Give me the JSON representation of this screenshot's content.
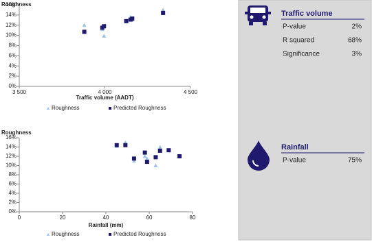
{
  "chart_data": [
    {
      "type": "scatter",
      "title": "Roughness",
      "x_label": "Traffic volume (AADT)",
      "xlim": [
        3500,
        4500
      ],
      "xticks": [
        {
          "value": 3500,
          "label": "3 500"
        },
        {
          "value": 4000,
          "label": "4 000"
        },
        {
          "value": 4500,
          "label": "4 500"
        }
      ],
      "ylim": [
        0,
        16
      ],
      "yticks": [
        {
          "value": 0,
          "label": "0%"
        },
        {
          "value": 2,
          "label": "2%"
        },
        {
          "value": 4,
          "label": "4%"
        },
        {
          "value": 6,
          "label": "6%"
        },
        {
          "value": 8,
          "label": "8%"
        },
        {
          "value": 10,
          "label": "10%"
        },
        {
          "value": 12,
          "label": "12%"
        },
        {
          "value": 14,
          "label": "14%"
        },
        {
          "value": 16,
          "label": "16%"
        }
      ],
      "grid": false,
      "series": [
        {
          "name": "Roughness",
          "marker": "triangle",
          "color": "#9dc3e6",
          "x": [
            3880,
            3985,
            3995,
            4125,
            4150,
            4160,
            4340
          ],
          "values": [
            12.0,
            11.2,
            9.9,
            12.7,
            13.6,
            13.1,
            15.0
          ]
        },
        {
          "name": "Predicted Roughness",
          "marker": "square",
          "color": "#1f1a6e",
          "x": [
            3880,
            3985,
            3995,
            4125,
            4150,
            4160,
            4340
          ],
          "values": [
            10.7,
            11.5,
            11.8,
            12.8,
            13.1,
            13.3,
            14.4
          ]
        }
      ]
    },
    {
      "type": "scatter",
      "title": "Roughness",
      "x_label": "Rainfall (mm)",
      "xlim": [
        0,
        80
      ],
      "xticks": [
        0,
        20,
        40,
        60,
        80
      ],
      "ylim": [
        0,
        16
      ],
      "yticks": [
        {
          "value": 0,
          "label": "0%"
        },
        {
          "value": 2,
          "label": "2%"
        },
        {
          "value": 4,
          "label": "4%"
        },
        {
          "value": 6,
          "label": "6%"
        },
        {
          "value": 8,
          "label": "8%"
        },
        {
          "value": 10,
          "label": "10%"
        },
        {
          "value": 12,
          "label": "12%"
        },
        {
          "value": 14,
          "label": "14%"
        },
        {
          "value": 16,
          "label": "16%"
        }
      ],
      "grid": false,
      "series": [
        {
          "name": "Roughness",
          "marker": "triangle",
          "color": "#9dc3e6",
          "x": [
            45,
            49,
            53,
            58,
            59,
            63,
            65,
            69,
            74
          ],
          "values": [
            14.2,
            15.0,
            11.0,
            12.0,
            11.5,
            10.0,
            14.0,
            13.3,
            12.0
          ]
        },
        {
          "name": "Predicted Roughness",
          "marker": "square",
          "color": "#1f1a6e",
          "x": [
            45,
            49,
            53,
            58,
            59,
            63,
            65,
            69,
            74
          ],
          "values": [
            14.4,
            14.4,
            11.5,
            12.8,
            10.8,
            11.8,
            13.2,
            13.3,
            12.0
          ]
        }
      ]
    }
  ],
  "panel": [
    {
      "title": "Traffic volume",
      "rows": [
        [
          "P-value",
          "2%"
        ],
        [
          "R squared",
          "68%"
        ],
        [
          "Significance",
          "3%"
        ]
      ]
    },
    {
      "title": "Rainfall",
      "rows": [
        [
          "P-value",
          "75%"
        ]
      ]
    }
  ]
}
